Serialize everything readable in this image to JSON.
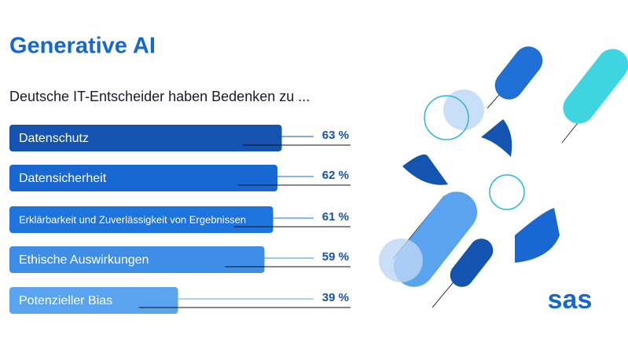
{
  "chart_data": {
    "type": "bar",
    "orientation": "horizontal",
    "title": "Generative AI",
    "subtitle": "Deutsche IT-Entscheider haben Bedenken zu ...",
    "categories": [
      "Datenschutz",
      "Datensicherheit",
      "Erklärbarkeit und Zuverlässigkeit von Ergebnissen",
      "Ethische Auswirkungen",
      "Potenzieller Bias"
    ],
    "values": [
      63,
      62,
      61,
      59,
      39
    ],
    "value_labels": [
      "63 %",
      "62 %",
      "61 %",
      "59 %",
      "39 %"
    ],
    "colors": [
      "#1553b0",
      "#1867d2",
      "#1d74dc",
      "#3e8de6",
      "#5aa3ee"
    ],
    "logo": "sas"
  }
}
